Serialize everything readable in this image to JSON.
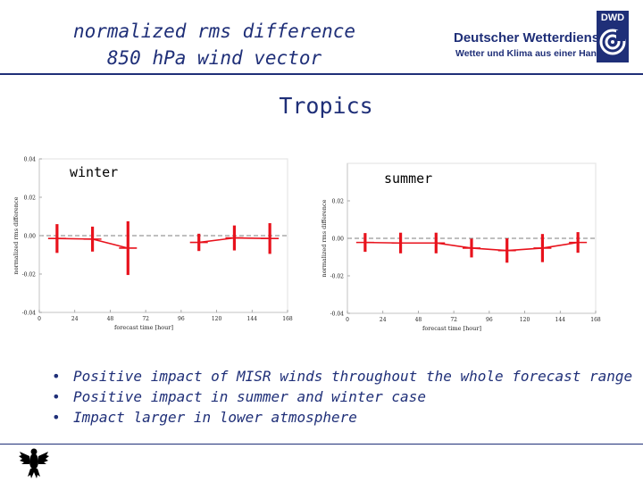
{
  "header": {
    "title_line1": "normalized rms difference",
    "title_line2": "850 hPa wind vector"
  },
  "logo": {
    "abbr": "DWD",
    "name": "Deutscher Wetterdienst",
    "tagline": "Wetter und Klima aus einer Hand"
  },
  "region_title": "Tropics",
  "colors": {
    "accent": "#1f2f78",
    "series": "#e8121c",
    "grid": "#555555"
  },
  "chart_data": [
    {
      "type": "line",
      "panel": "winter",
      "label": "winter",
      "title": "",
      "xlabel": "forecast time [hour]",
      "ylabel": "normalized rms difference",
      "x": [
        0,
        24,
        48,
        72,
        96,
        120,
        144,
        168
      ],
      "xticks": [
        "0",
        "24",
        "48",
        "72",
        "96",
        "120",
        "144",
        "168"
      ],
      "yticks": [
        "0.04",
        "0.02",
        "0.00",
        "-0.02",
        "-0.04"
      ],
      "ytick_values": [
        0.04,
        0.02,
        0.0,
        -0.02,
        -0.04
      ],
      "ylim": [
        -0.04,
        0.04
      ],
      "xlim": [
        0,
        168
      ],
      "series": [
        {
          "name": "normalized rms difference",
          "x": [
            12,
            36,
            60,
            108,
            132,
            156
          ],
          "values": [
            -0.0015,
            -0.0018,
            -0.0065,
            -0.0035,
            -0.0012,
            -0.0015
          ],
          "error": [
            0.0075,
            0.0065,
            0.014,
            0.0045,
            0.0065,
            0.008
          ],
          "breaks_after": [
            2
          ]
        }
      ]
    },
    {
      "type": "line",
      "panel": "summer",
      "label": "summer",
      "title": "",
      "xlabel": "forecast time [hour]",
      "ylabel": "normalized rms difference",
      "x": [
        0,
        24,
        48,
        72,
        96,
        120,
        144,
        168
      ],
      "xticks": [
        "0",
        "24",
        "48",
        "72",
        "96",
        "120",
        "144",
        "168"
      ],
      "yticks": [
        "0.02",
        "0.00",
        "-0.02",
        "-0.04"
      ],
      "ytick_values": [
        0.02,
        0.0,
        -0.02,
        -0.04
      ],
      "ylim": [
        -0.04,
        0.04
      ],
      "xlim": [
        0,
        168
      ],
      "series": [
        {
          "name": "normalized rms difference",
          "x": [
            12,
            36,
            60,
            84,
            108,
            132,
            156
          ],
          "values": [
            -0.0022,
            -0.0025,
            -0.0025,
            -0.0052,
            -0.0065,
            -0.0052,
            -0.0022
          ],
          "error": [
            0.005,
            0.0055,
            0.0055,
            0.005,
            0.0065,
            0.0075,
            0.0055
          ],
          "breaks_after": []
        }
      ]
    }
  ],
  "bullets": {
    "items": [
      {
        "dot": "•",
        "text": "Positive impact of MISR winds throughout the whole forecast range"
      },
      {
        "dot": "•",
        "text": "Positive impact in summer and winter case"
      },
      {
        "dot": "•",
        "text": "Impact larger in lower atmosphere"
      }
    ]
  }
}
